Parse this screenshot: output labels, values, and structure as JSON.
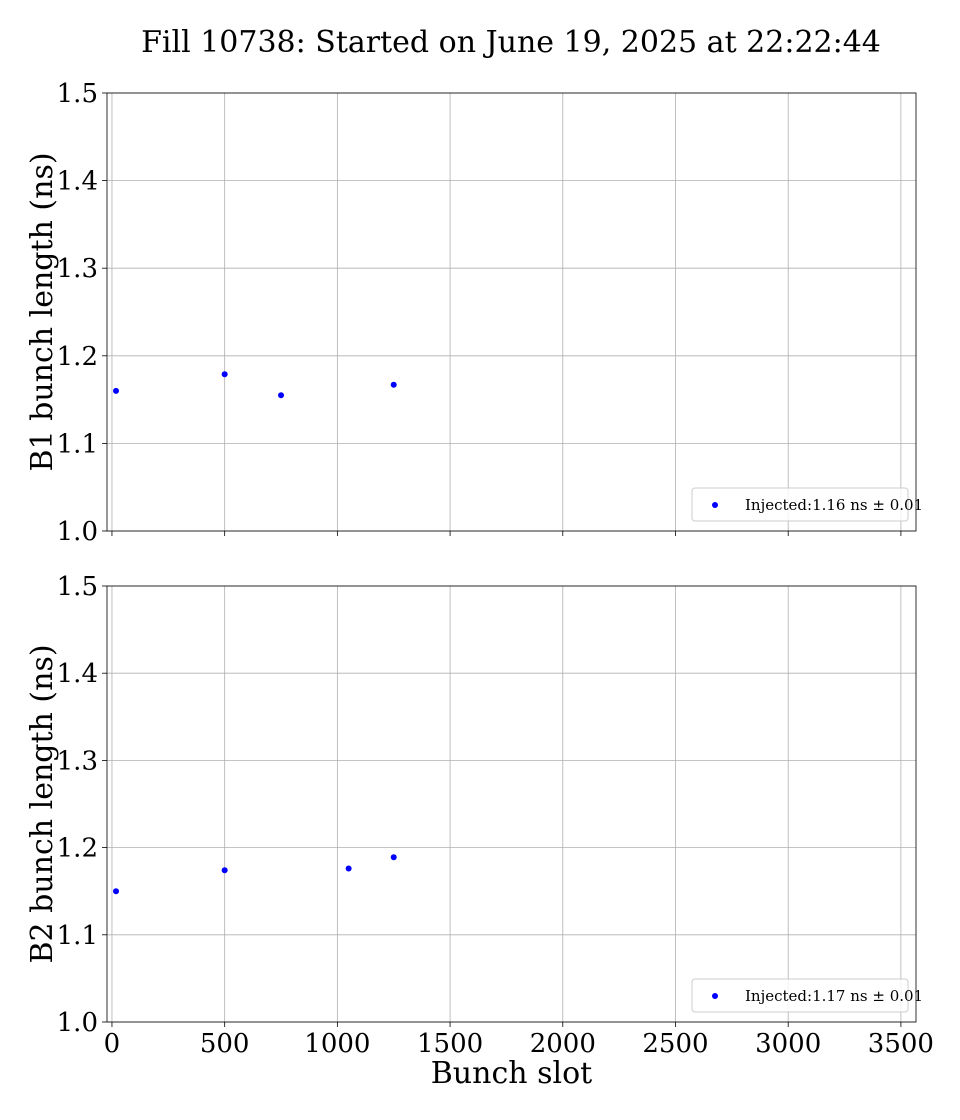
{
  "title": "Fill 10738: Started on June 19, 2025 at 22:22:44",
  "chart_data": [
    {
      "type": "scatter",
      "title": "Fill 10738: Started on June 19, 2025 at 22:22:44",
      "xlabel": "",
      "ylabel": "B1 bunch length (ns)",
      "xlim": [
        -22,
        3567
      ],
      "ylim": [
        1.0,
        1.5
      ],
      "xticks": [
        0,
        500,
        1000,
        1500,
        2000,
        2500,
        3000,
        3500
      ],
      "yticks": [
        "1.0",
        "1.1",
        "1.2",
        "1.3",
        "1.4",
        "1.5"
      ],
      "show_xtick_labels": false,
      "grid": true,
      "legend_position": "lower-right",
      "series": [
        {
          "name": "Injected:1.16 ns ± 0.01",
          "color": "#0000ff",
          "x": [
            18,
            500,
            750,
            1250
          ],
          "y": [
            1.16,
            1.179,
            1.155,
            1.167
          ]
        }
      ]
    },
    {
      "type": "scatter",
      "xlabel": "Bunch slot",
      "ylabel": "B2 bunch length (ns)",
      "xlim": [
        -22,
        3567
      ],
      "ylim": [
        1.0,
        1.5
      ],
      "xticks": [
        0,
        500,
        1000,
        1500,
        2000,
        2500,
        3000,
        3500
      ],
      "yticks": [
        "1.0",
        "1.1",
        "1.2",
        "1.3",
        "1.4",
        "1.5"
      ],
      "show_xtick_labels": true,
      "grid": true,
      "legend_position": "lower-right",
      "series": [
        {
          "name": "Injected:1.17 ns ± 0.01",
          "color": "#0000ff",
          "x": [
            18,
            500,
            1050,
            1250
          ],
          "y": [
            1.15,
            1.174,
            1.176,
            1.189
          ]
        }
      ]
    }
  ]
}
